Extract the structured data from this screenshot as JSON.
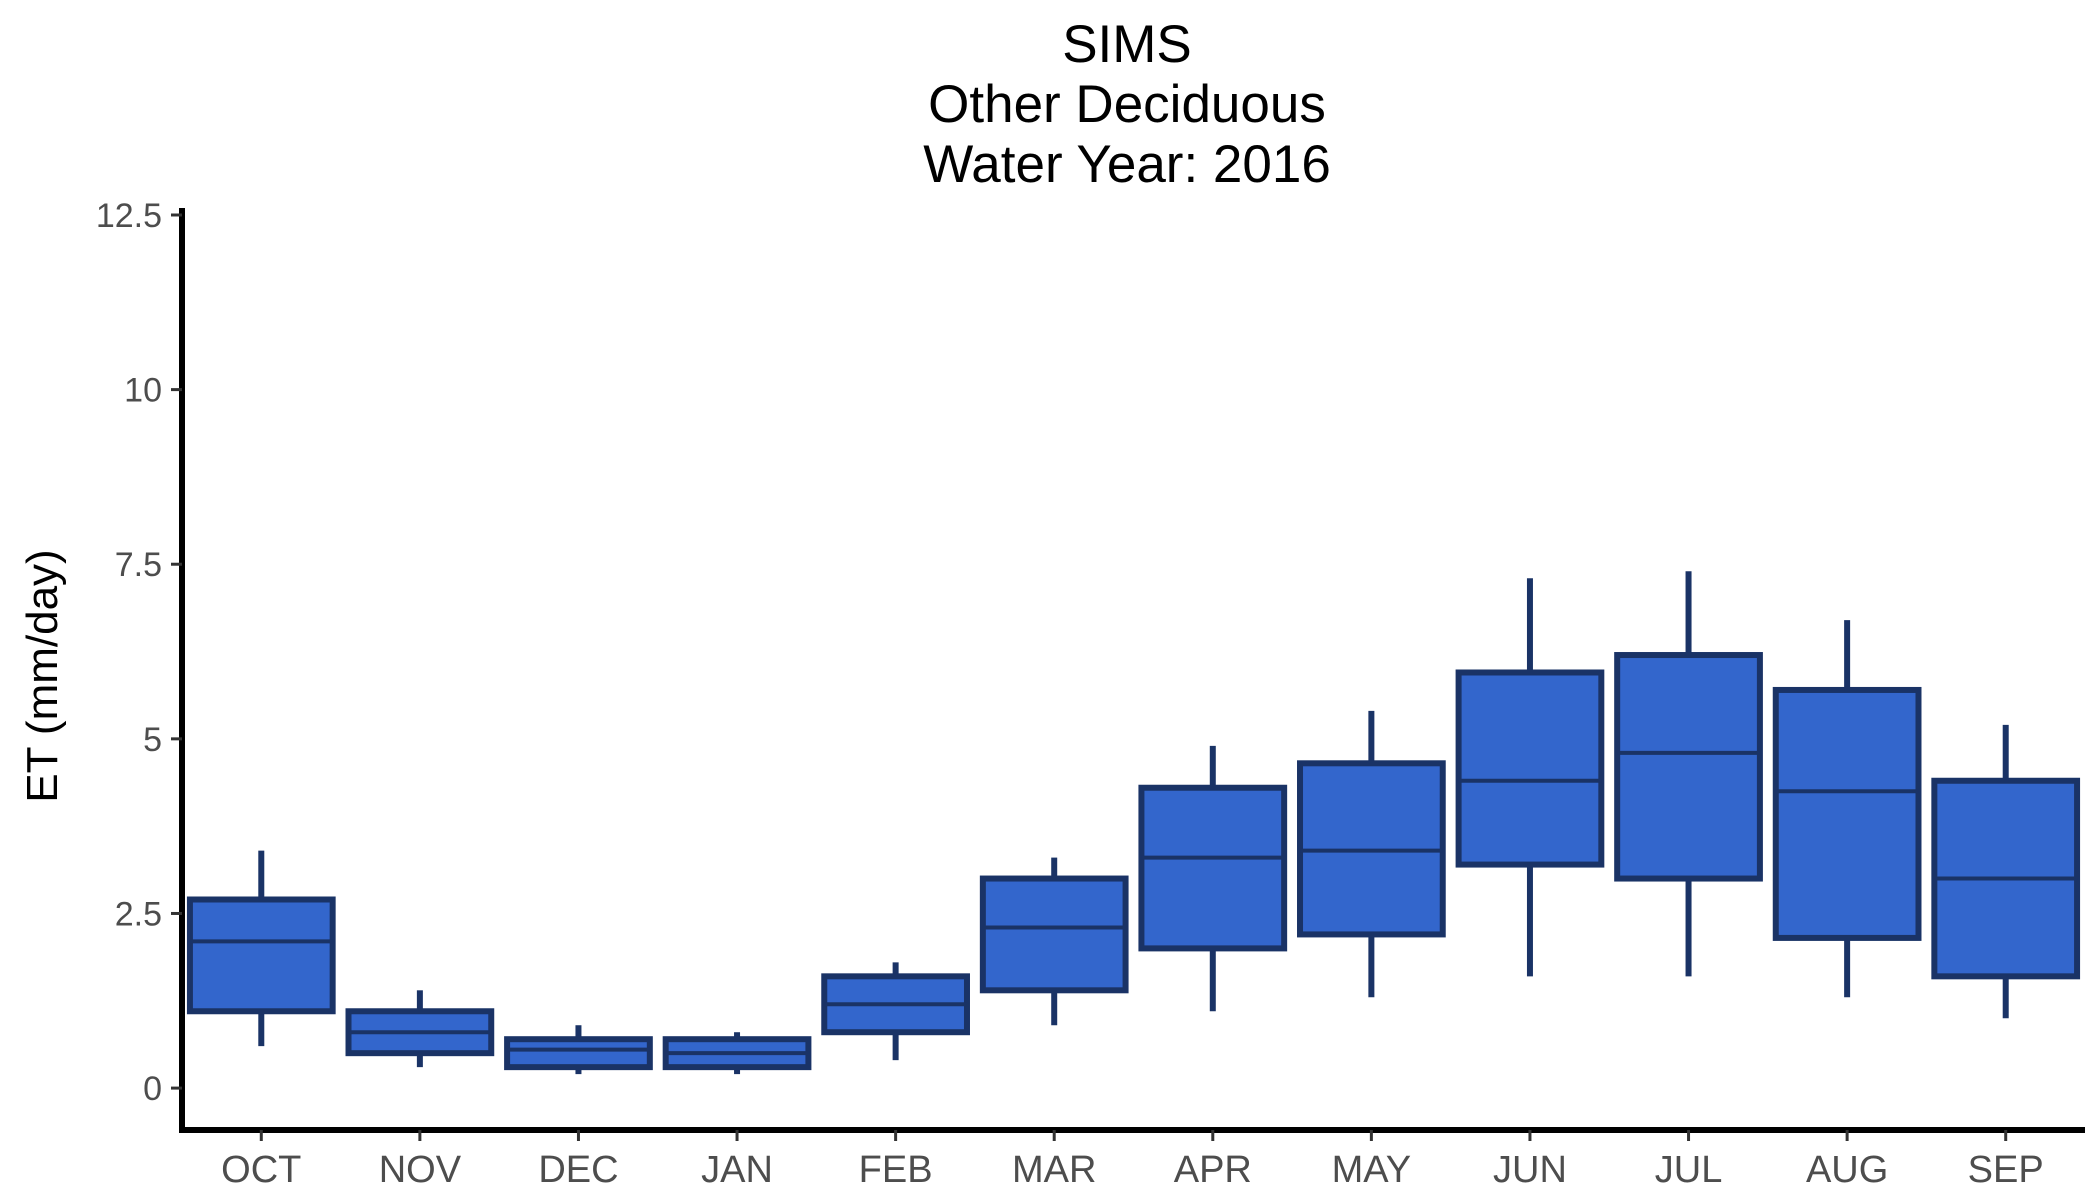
{
  "chart_data": {
    "type": "boxplot",
    "title": [
      "SIMS",
      "Other Deciduous",
      "Water Year: 2016"
    ],
    "xlabel": "",
    "ylabel": "ET (mm/day)",
    "ylim": [
      -0.6,
      12.6
    ],
    "yticks": [
      0,
      2.5,
      5,
      7.5,
      10,
      12.5
    ],
    "ytick_labels": [
      "0",
      "2.5",
      "5",
      "7.5",
      "10",
      "12.5"
    ],
    "grid": false,
    "legend": "none",
    "categories": [
      "OCT",
      "NOV",
      "DEC",
      "JAN",
      "FEB",
      "MAR",
      "APR",
      "MAY",
      "JUN",
      "JUL",
      "AUG",
      "SEP"
    ],
    "boxes": [
      {
        "min": 0.6,
        "q1": 1.1,
        "median": 2.1,
        "q3": 2.7,
        "max": 3.4
      },
      {
        "min": 0.3,
        "q1": 0.5,
        "median": 0.8,
        "q3": 1.1,
        "max": 1.4
      },
      {
        "min": 0.2,
        "q1": 0.3,
        "median": 0.55,
        "q3": 0.7,
        "max": 0.9
      },
      {
        "min": 0.2,
        "q1": 0.3,
        "median": 0.5,
        "q3": 0.7,
        "max": 0.8
      },
      {
        "min": 0.4,
        "q1": 0.8,
        "median": 1.2,
        "q3": 1.6,
        "max": 1.8
      },
      {
        "min": 0.9,
        "q1": 1.4,
        "median": 2.3,
        "q3": 3.0,
        "max": 3.3
      },
      {
        "min": 1.1,
        "q1": 2.0,
        "median": 3.3,
        "q3": 4.3,
        "max": 4.9
      },
      {
        "min": 1.3,
        "q1": 2.2,
        "median": 3.4,
        "q3": 4.65,
        "max": 5.4
      },
      {
        "min": 1.6,
        "q1": 3.2,
        "median": 4.4,
        "q3": 5.95,
        "max": 7.3
      },
      {
        "min": 1.6,
        "q1": 3.0,
        "median": 4.8,
        "q3": 6.2,
        "max": 7.4
      },
      {
        "min": 1.3,
        "q1": 2.15,
        "median": 4.25,
        "q3": 5.7,
        "max": 6.7
      },
      {
        "min": 1.0,
        "q1": 1.6,
        "median": 3.0,
        "q3": 4.4,
        "max": 5.2
      }
    ],
    "colors": {
      "box_fill": "#3366CC",
      "box_stroke": "#1A3366",
      "axis": "#000000"
    }
  }
}
